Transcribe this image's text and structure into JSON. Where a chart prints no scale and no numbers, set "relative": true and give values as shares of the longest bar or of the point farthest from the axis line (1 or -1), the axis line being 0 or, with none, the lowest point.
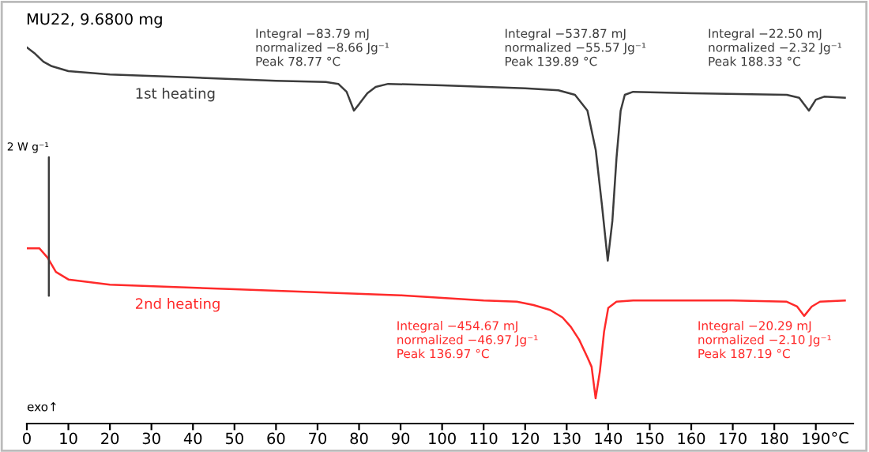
{
  "chart_data": {
    "type": "line",
    "title": "MU22, 9.6800 mg",
    "xlabel": "°C",
    "relative": true,
    "legend": false,
    "grid": false,
    "marker": "none",
    "line_style": "solid",
    "tick_labels": "x",
    "xlim": [
      0,
      199
    ],
    "xticks": [
      0,
      10,
      20,
      30,
      40,
      50,
      60,
      70,
      80,
      90,
      100,
      110,
      120,
      130,
      140,
      150,
      160,
      170,
      180,
      190
    ],
    "series": [
      {
        "name": "1st heating",
        "color": "#3c3c3c",
        "x": [
          0,
          2,
          4,
          6,
          10,
          20,
          40,
          60,
          72,
          75,
          77,
          78.77,
          80,
          82,
          84,
          87,
          100,
          120,
          128,
          132,
          135,
          137,
          138.5,
          139.89,
          141,
          142,
          143,
          144,
          146,
          160,
          183,
          186,
          188.33,
          190,
          192,
          197
        ],
        "values": [
          1.0,
          0.983,
          0.962,
          0.95,
          0.937,
          0.928,
          0.92,
          0.911,
          0.908,
          0.903,
          0.882,
          0.832,
          0.849,
          0.878,
          0.895,
          0.903,
          0.899,
          0.891,
          0.886,
          0.874,
          0.832,
          0.727,
          0.58,
          0.433,
          0.538,
          0.706,
          0.832,
          0.874,
          0.882,
          0.878,
          0.874,
          0.866,
          0.832,
          0.861,
          0.869,
          0.866
        ]
      },
      {
        "name": "2nd heating",
        "color": "#ff2a2a",
        "x": [
          0,
          3,
          5,
          7,
          10,
          20,
          50,
          90,
          110,
          118,
          122,
          126,
          129,
          131,
          133,
          135,
          136,
          136.97,
          138,
          139,
          140,
          142,
          146,
          170,
          183,
          185.5,
          187.19,
          189,
          191,
          197
        ],
        "values": [
          0.466,
          0.466,
          0.441,
          0.403,
          0.383,
          0.369,
          0.357,
          0.341,
          0.327,
          0.324,
          0.315,
          0.302,
          0.282,
          0.257,
          0.223,
          0.176,
          0.151,
          0.067,
          0.139,
          0.244,
          0.307,
          0.324,
          0.327,
          0.327,
          0.324,
          0.311,
          0.286,
          0.311,
          0.324,
          0.327
        ]
      }
    ],
    "annotations": [
      "Integral −83.79 mJ\nnormalized −8.66 Jg⁻¹\nPeak 78.77 °C",
      "Integral −537.87 mJ\nnormalized −55.57 Jg⁻¹\nPeak 139.89 °C",
      "Integral −22.50 mJ\nnormalized −2.32 Jg⁻¹\nPeak 188.33 °C",
      "Integral −454.67 mJ\nnormalized −46.97 Jg⁻¹\nPeak 136.97 °C",
      "Integral −20.29 mJ\nnormalized −2.10 Jg⁻¹\nPeak 187.19 °C",
      "2 W g⁻¹",
      "exo↑"
    ]
  }
}
